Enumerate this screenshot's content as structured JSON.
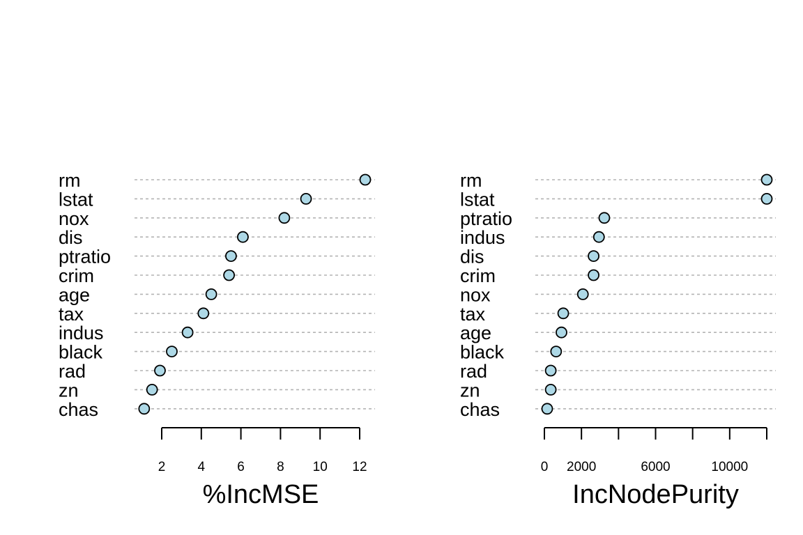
{
  "colors": {
    "point_fill": "#add8e6",
    "point_stroke": "#000000",
    "gridline": "#b3b3b3"
  },
  "chart_data": [
    {
      "type": "scatter",
      "style": "dotchart",
      "title": "",
      "xlabel": "%IncMSE",
      "ylabel": "",
      "xlim": [
        1.0,
        12.3
      ],
      "xticks": [
        2,
        4,
        6,
        8,
        10,
        12
      ],
      "grid": "dashed horizontal guides per category",
      "categories": [
        "rm",
        "lstat",
        "nox",
        "dis",
        "ptratio",
        "crim",
        "age",
        "tax",
        "indus",
        "black",
        "rad",
        "zn",
        "chas"
      ],
      "values": [
        12.3,
        9.3,
        8.2,
        6.1,
        5.5,
        5.4,
        4.5,
        4.1,
        3.3,
        2.5,
        1.9,
        1.5,
        1.1
      ]
    },
    {
      "type": "scatter",
      "style": "dotchart",
      "title": "",
      "xlabel": "IncNodePurity",
      "ylabel": "",
      "xlim": [
        200,
        12500
      ],
      "xticks": [
        0,
        2000,
        4000,
        6000,
        8000,
        10000,
        12000
      ],
      "xtick_labels": [
        "0",
        "2000",
        "",
        "6000",
        "",
        "10000",
        ""
      ],
      "grid": "dashed horizontal guides per category",
      "categories": [
        "rm",
        "lstat",
        "ptratio",
        "indus",
        "dis",
        "crim",
        "nox",
        "tax",
        "age",
        "black",
        "rad",
        "zn",
        "chas"
      ],
      "values": [
        12500,
        12500,
        3400,
        3100,
        2800,
        2800,
        2200,
        1100,
        1000,
        700,
        400,
        400,
        200
      ]
    }
  ]
}
